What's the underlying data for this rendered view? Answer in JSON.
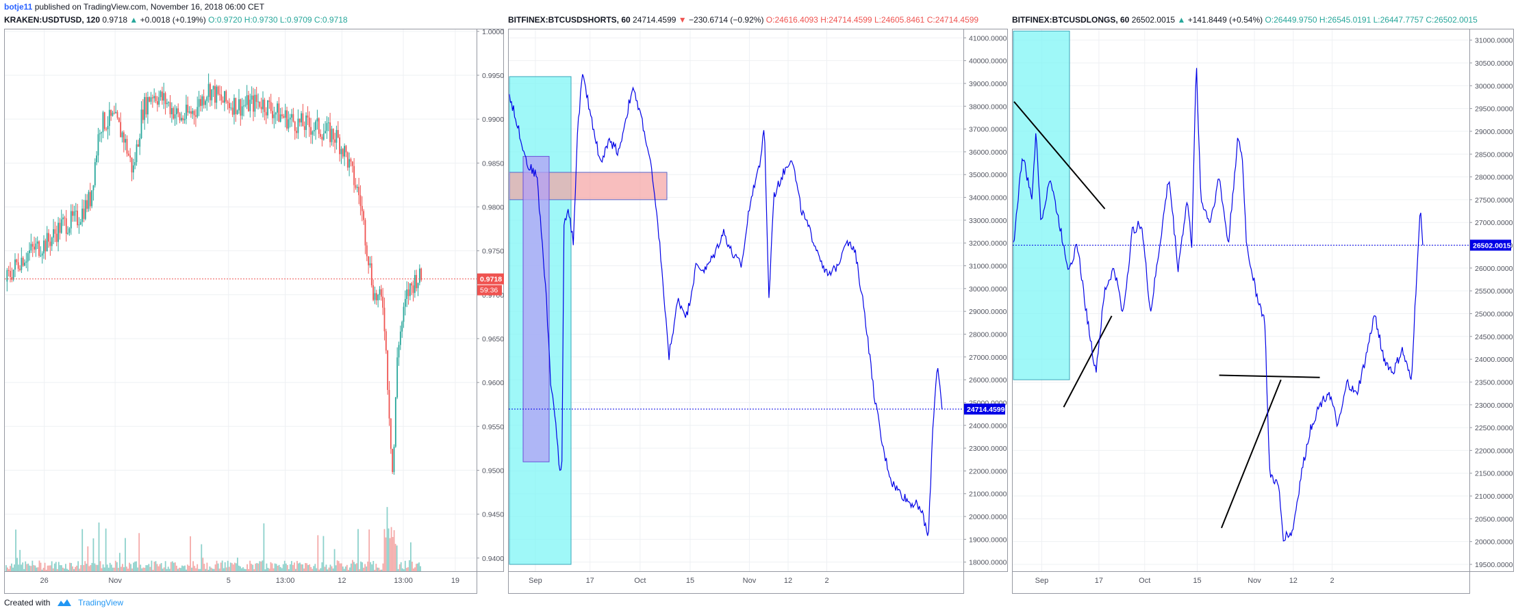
{
  "header": {
    "author": "botje11",
    "published": "published on TradingView.com, November 16, 2018 06:00 CET"
  },
  "footer": {
    "created_with": "Created with",
    "brand": "TradingView"
  },
  "colors": {
    "up": "#26a69a",
    "down": "#ef5350",
    "line": "#0000e6",
    "grid": "#eef0f3",
    "cyan_box": "#7ff5f5",
    "red_box": "#f5a3a3",
    "purple_box": "#b3a0f5"
  },
  "panels": [
    {
      "symbol": "KRAKEN:USDTUSD, 120",
      "last": "0.9718",
      "arrow": "up",
      "change": "+0.0018 (+0.19%)",
      "o": "O:0.9720",
      "h": "H:0.9730",
      "l": "L:0.9709",
      "c": "C:0.9718",
      "price_tag": "0.9718",
      "countdown": "59:36"
    },
    {
      "symbol": "BITFINEX:BTCUSDSHORTS, 60",
      "last": "24714.4599",
      "arrow": "down",
      "change": "−230.6714 (−0.92%)",
      "o": "O:24616.4093",
      "h": "H:24714.4599",
      "l": "L:24605.8461",
      "c": "C:24714.4599",
      "price_tag": "24714.4599"
    },
    {
      "symbol": "BITFINEX:BTCUSDLONGS, 60",
      "last": "26502.0015",
      "arrow": "up",
      "change": "+141.8449 (+0.54%)",
      "o": "O:26449.9750",
      "h": "H:26545.0191",
      "l": "L:26447.7757",
      "c": "C:26502.0015",
      "price_tag": "26502.0015"
    }
  ],
  "chart_data": [
    {
      "type": "candlestick",
      "title": "KRAKEN:USDTUSD, 120",
      "x_tick_labels": [
        "26",
        "Nov",
        "5",
        "13:00",
        "12",
        "13:00",
        "19"
      ],
      "y_tick_labels": [
        "1.0000",
        "0.9950",
        "0.9900",
        "0.9850",
        "0.9800",
        "0.9750",
        "0.9700",
        "0.9650",
        "0.9600",
        "0.9550",
        "0.9500",
        "0.9450",
        "0.9400"
      ],
      "ylim": [
        0.9385,
        1.0003
      ],
      "last_price": 0.9718,
      "price_path": [
        {
          "t": 0.0,
          "v": 0.9715
        },
        {
          "t": 0.03,
          "v": 0.974
        },
        {
          "t": 0.06,
          "v": 0.9752
        },
        {
          "t": 0.09,
          "v": 0.976
        },
        {
          "t": 0.12,
          "v": 0.978
        },
        {
          "t": 0.15,
          "v": 0.9785
        },
        {
          "t": 0.18,
          "v": 0.981
        },
        {
          "t": 0.2,
          "v": 0.9895
        },
        {
          "t": 0.23,
          "v": 0.99
        },
        {
          "t": 0.25,
          "v": 0.988
        },
        {
          "t": 0.27,
          "v": 0.984
        },
        {
          "t": 0.29,
          "v": 0.991
        },
        {
          "t": 0.31,
          "v": 0.993
        },
        {
          "t": 0.34,
          "v": 0.992
        },
        {
          "t": 0.37,
          "v": 0.99
        },
        {
          "t": 0.4,
          "v": 0.991
        },
        {
          "t": 0.43,
          "v": 0.9935
        },
        {
          "t": 0.46,
          "v": 0.992
        },
        {
          "t": 0.5,
          "v": 0.9915
        },
        {
          "t": 0.54,
          "v": 0.992
        },
        {
          "t": 0.58,
          "v": 0.9905
        },
        {
          "t": 0.62,
          "v": 0.9895
        },
        {
          "t": 0.66,
          "v": 0.989
        },
        {
          "t": 0.7,
          "v": 0.988
        },
        {
          "t": 0.72,
          "v": 0.986
        },
        {
          "t": 0.75,
          "v": 0.981
        },
        {
          "t": 0.78,
          "v": 0.97
        },
        {
          "t": 0.8,
          "v": 0.969
        },
        {
          "t": 0.81,
          "v": 0.959
        },
        {
          "t": 0.82,
          "v": 0.949
        },
        {
          "t": 0.83,
          "v": 0.964
        },
        {
          "t": 0.85,
          "v": 0.97
        },
        {
          "t": 0.87,
          "v": 0.972
        },
        {
          "t": 0.88,
          "v": 0.9718
        }
      ],
      "volume_note": "volume histogram along bottom (red/teal bars)"
    },
    {
      "type": "line",
      "title": "BITFINEX:BTCUSDSHORTS, 60",
      "x_tick_labels": [
        "Sep",
        "17",
        "Oct",
        "15",
        "Nov",
        "12",
        "2"
      ],
      "y_tick_labels": [
        "41000.0000",
        "40000.0000",
        "39000.0000",
        "38000.0000",
        "37000.0000",
        "36000.0000",
        "35000.0000",
        "34000.0000",
        "33000.0000",
        "32000.0000",
        "31000.0000",
        "30000.0000",
        "29000.0000",
        "28000.0000",
        "27000.0000",
        "26000.0000",
        "25000.0000",
        "24000.0000",
        "23000.0000",
        "22000.0000",
        "21000.0000",
        "20000.0000",
        "19000.0000",
        "18000.0000"
      ],
      "ylim": [
        17600,
        41400
      ],
      "last_price": 24714.4599,
      "series": [
        {
          "points": [
            {
              "t": 0.0,
              "v": 38500
            },
            {
              "t": 0.02,
              "v": 37000
            },
            {
              "t": 0.04,
              "v": 35400
            },
            {
              "t": 0.06,
              "v": 35000
            },
            {
              "t": 0.08,
              "v": 30000
            },
            {
              "t": 0.09,
              "v": 26000
            },
            {
              "t": 0.1,
              "v": 24500
            },
            {
              "t": 0.11,
              "v": 22000
            },
            {
              "t": 0.115,
              "v": 21800
            },
            {
              "t": 0.12,
              "v": 33000
            },
            {
              "t": 0.13,
              "v": 33500
            },
            {
              "t": 0.14,
              "v": 32000
            },
            {
              "t": 0.15,
              "v": 37000
            },
            {
              "t": 0.16,
              "v": 39400
            },
            {
              "t": 0.18,
              "v": 37500
            },
            {
              "t": 0.2,
              "v": 35500
            },
            {
              "t": 0.22,
              "v": 36500
            },
            {
              "t": 0.24,
              "v": 36000
            },
            {
              "t": 0.27,
              "v": 38800
            },
            {
              "t": 0.29,
              "v": 37500
            },
            {
              "t": 0.31,
              "v": 35500
            },
            {
              "t": 0.33,
              "v": 32000
            },
            {
              "t": 0.35,
              "v": 27000
            },
            {
              "t": 0.37,
              "v": 29500
            },
            {
              "t": 0.39,
              "v": 28800
            },
            {
              "t": 0.41,
              "v": 31000
            },
            {
              "t": 0.43,
              "v": 30800
            },
            {
              "t": 0.45,
              "v": 31500
            },
            {
              "t": 0.47,
              "v": 32500
            },
            {
              "t": 0.49,
              "v": 31500
            },
            {
              "t": 0.51,
              "v": 31000
            },
            {
              "t": 0.53,
              "v": 34000
            },
            {
              "t": 0.55,
              "v": 35500
            },
            {
              "t": 0.56,
              "v": 37000
            },
            {
              "t": 0.57,
              "v": 29500
            },
            {
              "t": 0.58,
              "v": 34000
            },
            {
              "t": 0.6,
              "v": 35000
            },
            {
              "t": 0.62,
              "v": 35800
            },
            {
              "t": 0.64,
              "v": 33500
            },
            {
              "t": 0.66,
              "v": 32500
            },
            {
              "t": 0.68,
              "v": 31500
            },
            {
              "t": 0.7,
              "v": 30500
            },
            {
              "t": 0.72,
              "v": 31000
            },
            {
              "t": 0.74,
              "v": 32200
            },
            {
              "t": 0.76,
              "v": 31500
            },
            {
              "t": 0.78,
              "v": 29000
            },
            {
              "t": 0.8,
              "v": 25500
            },
            {
              "t": 0.82,
              "v": 23000
            },
            {
              "t": 0.84,
              "v": 21500
            },
            {
              "t": 0.86,
              "v": 21000
            },
            {
              "t": 0.88,
              "v": 20600
            },
            {
              "t": 0.9,
              "v": 20500
            },
            {
              "t": 0.91,
              "v": 19900
            },
            {
              "t": 0.92,
              "v": 19000
            },
            {
              "t": 0.93,
              "v": 24000
            },
            {
              "t": 0.94,
              "v": 26800
            },
            {
              "t": 0.95,
              "v": 24714
            }
          ]
        }
      ]
    },
    {
      "type": "line",
      "title": "BITFINEX:BTCUSDLONGS, 60",
      "x_tick_labels": [
        "Sep",
        "17",
        "Oct",
        "15",
        "Nov",
        "12",
        "2"
      ],
      "y_tick_labels": [
        "31000.0000",
        "30500.0000",
        "30000.0000",
        "29500.0000",
        "29000.0000",
        "28500.0000",
        "28000.0000",
        "27500.0000",
        "27000.0000",
        "26500.0000",
        "26000.0000",
        "25500.0000",
        "25000.0000",
        "24500.0000",
        "24000.0000",
        "23500.0000",
        "23000.0000",
        "22500.0000",
        "22000.0000",
        "21500.0000",
        "21000.0000",
        "20500.0000",
        "20000.0000",
        "19500.0000"
      ],
      "ylim": [
        19350,
        31250
      ],
      "last_price": 26502.0015,
      "series": [
        {
          "points": [
            {
              "t": 0.0,
              "v": 26500
            },
            {
              "t": 0.02,
              "v": 28500
            },
            {
              "t": 0.04,
              "v": 27500
            },
            {
              "t": 0.05,
              "v": 29000
            },
            {
              "t": 0.06,
              "v": 27000
            },
            {
              "t": 0.08,
              "v": 28000
            },
            {
              "t": 0.1,
              "v": 27000
            },
            {
              "t": 0.12,
              "v": 26000
            },
            {
              "t": 0.14,
              "v": 26500
            },
            {
              "t": 0.16,
              "v": 25000
            },
            {
              "t": 0.18,
              "v": 23700
            },
            {
              "t": 0.2,
              "v": 25500
            },
            {
              "t": 0.22,
              "v": 26000
            },
            {
              "t": 0.24,
              "v": 25000
            },
            {
              "t": 0.26,
              "v": 26800
            },
            {
              "t": 0.28,
              "v": 27000
            },
            {
              "t": 0.3,
              "v": 25000
            },
            {
              "t": 0.32,
              "v": 26500
            },
            {
              "t": 0.34,
              "v": 28000
            },
            {
              "t": 0.36,
              "v": 26000
            },
            {
              "t": 0.38,
              "v": 27500
            },
            {
              "t": 0.39,
              "v": 26500
            },
            {
              "t": 0.4,
              "v": 30500
            },
            {
              "t": 0.41,
              "v": 27500
            },
            {
              "t": 0.43,
              "v": 27000
            },
            {
              "t": 0.45,
              "v": 28000
            },
            {
              "t": 0.47,
              "v": 26500
            },
            {
              "t": 0.49,
              "v": 28800
            },
            {
              "t": 0.5,
              "v": 28500
            },
            {
              "t": 0.51,
              "v": 26500
            },
            {
              "t": 0.53,
              "v": 25500
            },
            {
              "t": 0.55,
              "v": 24800
            },
            {
              "t": 0.56,
              "v": 21500
            },
            {
              "t": 0.58,
              "v": 21200
            },
            {
              "t": 0.59,
              "v": 20100
            },
            {
              "t": 0.61,
              "v": 20200
            },
            {
              "t": 0.63,
              "v": 21500
            },
            {
              "t": 0.65,
              "v": 22500
            },
            {
              "t": 0.67,
              "v": 23000
            },
            {
              "t": 0.69,
              "v": 23300
            },
            {
              "t": 0.71,
              "v": 22500
            },
            {
              "t": 0.73,
              "v": 23500
            },
            {
              "t": 0.75,
              "v": 23200
            },
            {
              "t": 0.77,
              "v": 24000
            },
            {
              "t": 0.79,
              "v": 25000
            },
            {
              "t": 0.81,
              "v": 24000
            },
            {
              "t": 0.83,
              "v": 23700
            },
            {
              "t": 0.85,
              "v": 24200
            },
            {
              "t": 0.87,
              "v": 23500
            },
            {
              "t": 0.88,
              "v": 25500
            },
            {
              "t": 0.89,
              "v": 27300
            },
            {
              "t": 0.895,
              "v": 26502
            }
          ]
        }
      ]
    }
  ]
}
